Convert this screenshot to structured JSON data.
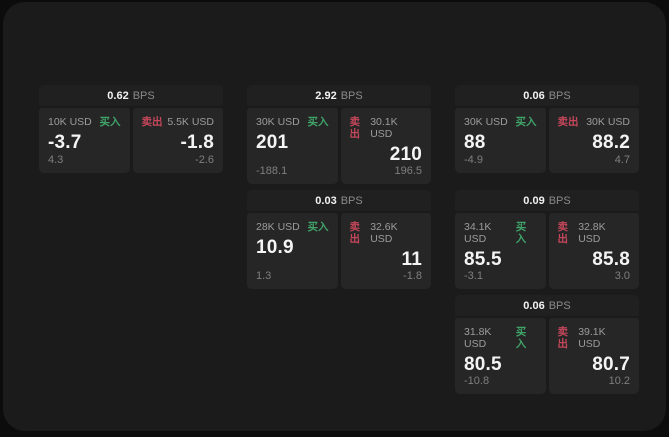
{
  "labels": {
    "bps_unit": "BPS",
    "buy": "买入",
    "sell": "卖出"
  },
  "colors": {
    "outer_background": "#0c0c0d",
    "window_background": "#1b1b1c",
    "header_background": "#202021",
    "panel_background": "#262627",
    "buy_green": "#3fa368",
    "sell_red": "#c4475a",
    "primary_text": "#f4f4f4",
    "muted_text": "#9c9c9c"
  },
  "cards": [
    {
      "bps": "0.62",
      "unit": "BPS",
      "buy": {
        "amount": "10K USD",
        "side": "买入",
        "value": "-3.7",
        "sub": "4.3"
      },
      "sell": {
        "side": "卖出",
        "amount": "5.5K USD",
        "value": "-1.8",
        "sub": "-2.6"
      }
    },
    {
      "bps": "2.92",
      "unit": "BPS",
      "buy": {
        "amount": "30K USD",
        "side": "买入",
        "value": "201",
        "sub": "-188.1"
      },
      "sell": {
        "side": "卖出",
        "amount": "30.1K USD",
        "value": "210",
        "sub": "196.5"
      }
    },
    {
      "bps": "0.06",
      "unit": "BPS",
      "buy": {
        "amount": "30K USD",
        "side": "买入",
        "value": "88",
        "sub": "-4.9"
      },
      "sell": {
        "side": "卖出",
        "amount": "30K USD",
        "value": "88.2",
        "sub": "4.7"
      }
    },
    {
      "bps": "0.03",
      "unit": "BPS",
      "buy": {
        "amount": "28K USD",
        "side": "买入",
        "value": "10.9",
        "sub": "1.3"
      },
      "sell": {
        "side": "卖出",
        "amount": "32.6K USD",
        "value": "11",
        "sub": "-1.8"
      }
    },
    {
      "bps": "0.09",
      "unit": "BPS",
      "buy": {
        "amount": "34.1K USD",
        "side": "买入",
        "value": "85.5",
        "sub": "-3.1"
      },
      "sell": {
        "side": "卖出",
        "amount": "32.8K USD",
        "value": "85.8",
        "sub": "3.0"
      }
    },
    {
      "bps": "0.06",
      "unit": "BPS",
      "buy": {
        "amount": "31.8K USD",
        "side": "买入",
        "value": "80.5",
        "sub": "-10.8"
      },
      "sell": {
        "side": "卖出",
        "amount": "39.1K USD",
        "value": "80.7",
        "sub": "10.2"
      }
    }
  ]
}
